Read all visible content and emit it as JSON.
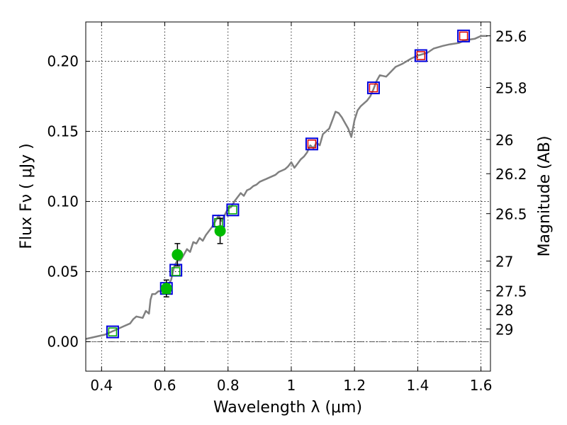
{
  "chart_data": {
    "type": "line",
    "xlabel": "Wavelength  λ (μm)",
    "ylabel": "Flux  Fν  ( μJy )",
    "y2label": "Magnitude (AB)",
    "xlim": [
      0.35,
      1.63
    ],
    "ylim": [
      -0.021,
      0.228
    ],
    "grid": true,
    "x_ticks": [
      0.4,
      0.6,
      0.8,
      1.0,
      1.2,
      1.4,
      1.6
    ],
    "x_tick_labels": [
      "0.4",
      "0.6",
      "0.8",
      "1",
      "1.2",
      "1.4",
      "1.6"
    ],
    "y_ticks": [
      0.0,
      0.05,
      0.1,
      0.15,
      0.2
    ],
    "y_tick_labels": [
      "0.00",
      "0.05",
      "0.10",
      "0.15",
      "0.20"
    ],
    "mag_ticks": [
      {
        "flux": 0.2181,
        "label": "25.6"
      },
      {
        "flux": 0.1813,
        "label": "25.8"
      },
      {
        "flux": 0.1442,
        "label": "26"
      },
      {
        "flux": 0.1198,
        "label": "26.2"
      },
      {
        "flux": 0.0913,
        "label": "26.5"
      },
      {
        "flux": 0.0575,
        "label": "27"
      },
      {
        "flux": 0.0363,
        "label": "27.5"
      },
      {
        "flux": 0.0229,
        "label": "28"
      },
      {
        "flux": 0.0091,
        "label": "29"
      }
    ],
    "series": [
      {
        "style": "line",
        "color": "#808080",
        "x": [
          0.35,
          0.37,
          0.39,
          0.41,
          0.43,
          0.45,
          0.47,
          0.49,
          0.5,
          0.51,
          0.53,
          0.54,
          0.55,
          0.555,
          0.56,
          0.57,
          0.58,
          0.6,
          0.62,
          0.63,
          0.64,
          0.65,
          0.66,
          0.67,
          0.68,
          0.69,
          0.7,
          0.71,
          0.72,
          0.73,
          0.75,
          0.77,
          0.78,
          0.8,
          0.81,
          0.82,
          0.83,
          0.84,
          0.85,
          0.86,
          0.87,
          0.88,
          0.89,
          0.9,
          0.91,
          0.92,
          0.93,
          0.94,
          0.95,
          0.96,
          0.97,
          0.98,
          0.99,
          1.0,
          1.01,
          1.02,
          1.03,
          1.04,
          1.05,
          1.06,
          1.07,
          1.08,
          1.09,
          1.1,
          1.11,
          1.12,
          1.13,
          1.14,
          1.15,
          1.16,
          1.17,
          1.18,
          1.19,
          1.2,
          1.21,
          1.22,
          1.23,
          1.24,
          1.25,
          1.26,
          1.27,
          1.28,
          1.3,
          1.33,
          1.35,
          1.38,
          1.4,
          1.43,
          1.45,
          1.48,
          1.5,
          1.53,
          1.55,
          1.58,
          1.6,
          1.62
        ],
        "y": [
          0.002,
          0.003,
          0.004,
          0.005,
          0.007,
          0.009,
          0.011,
          0.013,
          0.016,
          0.018,
          0.017,
          0.022,
          0.02,
          0.03,
          0.034,
          0.034,
          0.036,
          0.036,
          0.044,
          0.054,
          0.058,
          0.058,
          0.062,
          0.066,
          0.064,
          0.071,
          0.07,
          0.074,
          0.072,
          0.076,
          0.082,
          0.09,
          0.086,
          0.095,
          0.096,
          0.1,
          0.103,
          0.106,
          0.104,
          0.108,
          0.109,
          0.111,
          0.112,
          0.114,
          0.115,
          0.116,
          0.117,
          0.118,
          0.119,
          0.121,
          0.122,
          0.123,
          0.125,
          0.128,
          0.124,
          0.127,
          0.13,
          0.132,
          0.135,
          0.14,
          0.138,
          0.142,
          0.14,
          0.148,
          0.15,
          0.152,
          0.158,
          0.164,
          0.163,
          0.16,
          0.156,
          0.152,
          0.146,
          0.158,
          0.165,
          0.168,
          0.17,
          0.172,
          0.175,
          0.18,
          0.186,
          0.19,
          0.189,
          0.196,
          0.198,
          0.202,
          0.204,
          0.206,
          0.209,
          0.211,
          0.212,
          0.213,
          0.215,
          0.216,
          0.218,
          0.218
        ]
      },
      {
        "style": "hollow-square",
        "color": "#0000dd",
        "x": [
          0.435,
          0.605,
          0.635,
          0.77,
          0.815,
          1.065,
          1.26,
          1.41,
          1.545
        ],
        "y": [
          0.007,
          0.038,
          0.051,
          0.086,
          0.094,
          0.141,
          0.181,
          0.204,
          0.218
        ]
      },
      {
        "style": "hollow-square-small",
        "color": "#00aa00",
        "x": [
          0.435,
          0.605,
          0.635,
          0.77,
          0.815
        ],
        "y": [
          0.007,
          0.037,
          0.05,
          0.085,
          0.094
        ]
      },
      {
        "style": "hollow-square-small",
        "color": "#dd0000",
        "x": [
          1.065,
          1.26,
          1.41,
          1.545
        ],
        "y": [
          0.141,
          0.181,
          0.204,
          0.218
        ]
      },
      {
        "style": "filled-circle-errorbar",
        "color": "#00bb00",
        "x": [
          0.605,
          0.64,
          0.775
        ],
        "y": [
          0.038,
          0.062,
          0.079
        ],
        "err": [
          0.006,
          0.008,
          0.009
        ]
      }
    ],
    "zero_line": {
      "y": 0.0,
      "style": "dash-dot"
    }
  }
}
